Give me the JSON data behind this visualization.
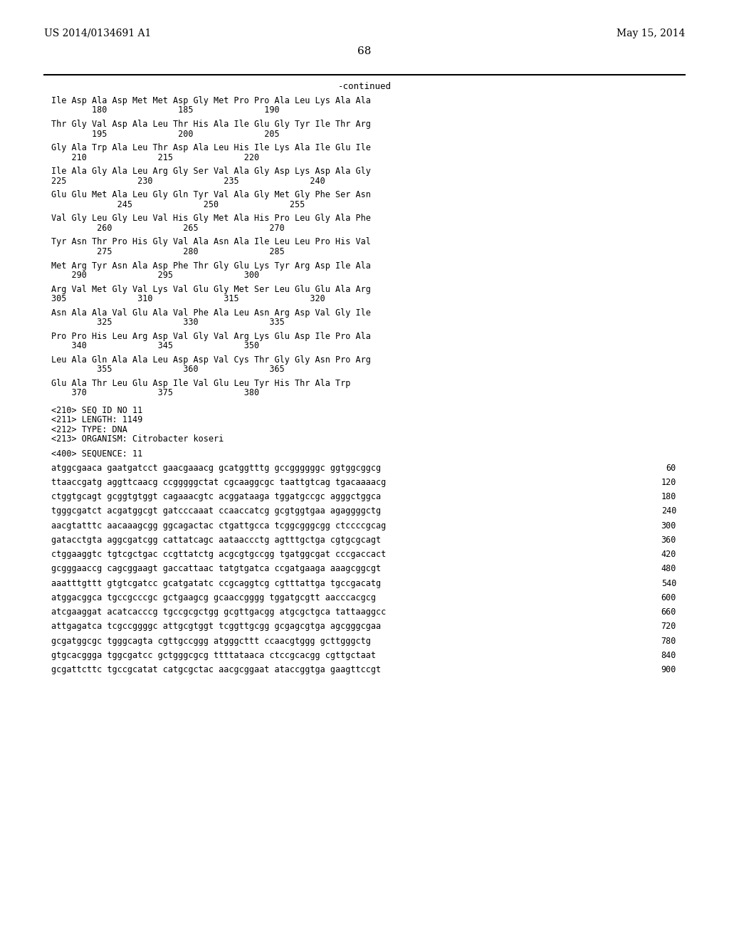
{
  "header_left": "US 2014/0134691 A1",
  "header_right": "May 15, 2014",
  "page_number": "68",
  "continued_label": "-continued",
  "background_color": "#ffffff",
  "text_color": "#000000",
  "font_size": 8.5,
  "mono_font": "DejaVu Sans Mono",
  "header_font_size": 10,
  "protein_lines": [
    "Ile Asp Ala Asp Met Met Asp Gly Met Pro Pro Ala Leu Lys Ala Ala",
    "        180              185              190",
    "",
    "Thr Gly Val Asp Ala Leu Thr His Ala Ile Glu Gly Tyr Ile Thr Arg",
    "        195              200              205",
    "",
    "Gly Ala Trp Ala Leu Thr Asp Ala Leu His Ile Lys Ala Ile Glu Ile",
    "    210              215              220",
    "",
    "Ile Ala Gly Ala Leu Arg Gly Ser Val Ala Gly Asp Lys Asp Ala Gly",
    "225              230              235              240",
    "",
    "Glu Glu Met Ala Leu Gly Gln Tyr Val Ala Gly Met Gly Phe Ser Asn",
    "             245              250              255",
    "",
    "Val Gly Leu Gly Leu Val His Gly Met Ala His Pro Leu Gly Ala Phe",
    "         260              265              270",
    "",
    "Tyr Asn Thr Pro His Gly Val Ala Asn Ala Ile Leu Leu Pro His Val",
    "         275              280              285",
    "",
    "Met Arg Tyr Asn Ala Asp Phe Thr Gly Glu Lys Tyr Arg Asp Ile Ala",
    "    290              295              300",
    "",
    "Arg Val Met Gly Val Lys Val Glu Gly Met Ser Leu Glu Glu Ala Arg",
    "305              310              315              320",
    "",
    "Asn Ala Ala Val Glu Ala Val Phe Ala Leu Asn Arg Asp Val Gly Ile",
    "         325              330              335",
    "",
    "Pro Pro His Leu Arg Asp Val Gly Val Arg Lys Glu Asp Ile Pro Ala",
    "    340              345              350",
    "",
    "Leu Ala Gln Ala Ala Leu Asp Asp Val Cys Thr Gly Gly Asn Pro Arg",
    "         355              360              365",
    "",
    "Glu Ala Thr Leu Glu Asp Ile Val Glu Leu Tyr His Thr Ala Trp",
    "    370              375              380"
  ],
  "metadata_lines": [
    "<210> SEQ ID NO 11",
    "<211> LENGTH: 1149",
    "<212> TYPE: DNA",
    "<213> ORGANISM: Citrobacter koseri"
  ],
  "sequence_header": "<400> SEQUENCE: 11",
  "dna_lines": [
    [
      "atggcgaaca gaatgatcct gaacgaaacg gcatggtttg gccggggggc ggtggcggcg",
      "60"
    ],
    [
      "ttaaccgatg aggttcaacg ccgggggctat cgcaaggcgc taattgtcag tgacaaaacg",
      "120"
    ],
    [
      "ctggtgcagt gcggtgtggt cagaaacgtc acggataaga tggatgccgc agggctggca",
      "180"
    ],
    [
      "tgggcgatct acgatggcgt gatcccaaat ccaaccatcg gcgtggtgaa agaggggctg",
      "240"
    ],
    [
      "aacgtatttc aacaaagcgg ggcagactac ctgattgcca tcggcgggcgg ctccccgcag",
      "300"
    ],
    [
      "gatacctgta aggcgatcgg cattatcagc aataaccctg agtttgctga cgtgcgcagt",
      "360"
    ],
    [
      "ctggaaggtc tgtcgctgac ccgttatctg acgcgtgccgg tgatggcgat cccgaccact",
      "420"
    ],
    [
      "gcgggaaccg cagcggaagt gaccattaac tatgtgatca ccgatgaaga aaagcggcgt",
      "480"
    ],
    [
      "aaatttgttt gtgtcgatcc gcatgatatc ccgcaggtcg cgtttattga tgccgacatg",
      "540"
    ],
    [
      "atggacggca tgccgcccgc gctgaagcg gcaaccgggg tggatgcgtt aacccacgcg",
      "600"
    ],
    [
      "atcgaaggat acatcacccg tgccgcgctgg gcgttgacgg atgcgctgca tattaaggcc",
      "660"
    ],
    [
      "attgagatca tcgccggggc attgcgtggt tcggttgcgg gcgagcgtga agcgggcgaa",
      "720"
    ],
    [
      "gcgatggcgc tgggcagta cgttgccggg atgggcttt ccaacgtggg gcttgggctg",
      "780"
    ],
    [
      "gtgcacggga tggcgatcc gctgggcgcg ttttataaca ctccgcacgg cgttgctaat",
      "840"
    ],
    [
      "gcgattcttc tgccgcatat catgcgctac aacgcggaat ataccggtga gaagttccgt",
      "900"
    ]
  ]
}
